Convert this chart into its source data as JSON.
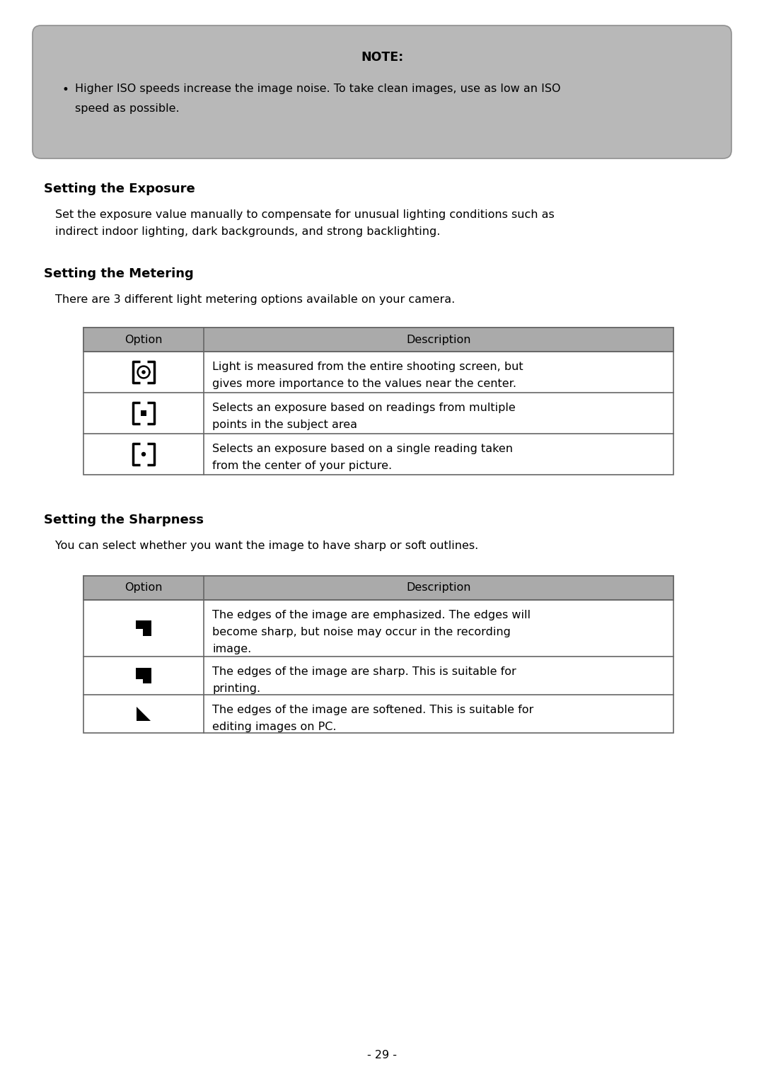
{
  "page_bg": "#ffffff",
  "note_bg": "#b8b8b8",
  "note_title": "NOTE:",
  "note_bullet_line1": "Higher ISO speeds increase the image noise. To take clean images, use as low an ISO",
  "note_bullet_line2": "speed as possible.",
  "section1_title": "Setting the Exposure",
  "section1_body_line1": "Set the exposure value manually to compensate for unusual lighting conditions such as",
  "section1_body_line2": "indirect indoor lighting, dark backgrounds, and strong backlighting.",
  "section2_title": "Setting the Metering",
  "section2_body": "There are 3 different light metering options available on your camera.",
  "metering_desc1_line1": "Light is measured from the entire shooting screen, but",
  "metering_desc1_line2": "gives more importance to the values near the center.",
  "metering_desc2_line1": "Selects an exposure based on readings from multiple",
  "metering_desc2_line2": "points in the subject area",
  "metering_desc3_line1": "Selects an exposure based on a single reading taken",
  "metering_desc3_line2": "from the center of your picture.",
  "section3_title": "Setting the Sharpness",
  "section3_body": "You can select whether you want the image to have sharp or soft outlines.",
  "sharp_desc1_line1": "The edges of the image are emphasized. The edges will",
  "sharp_desc1_line2": "become sharp, but noise may occur in the recording",
  "sharp_desc1_line3": "image.",
  "sharp_desc2_line1": "The edges of the image are sharp. This is suitable for",
  "sharp_desc2_line2": "printing.",
  "sharp_desc3_line1": "The edges of the image are softened. This is suitable for",
  "sharp_desc3_line2": "editing images on PC.",
  "page_number": "- 29 -",
  "table_header_bg": "#aaaaaa",
  "table_border": "#666666",
  "text_color": "#000000"
}
